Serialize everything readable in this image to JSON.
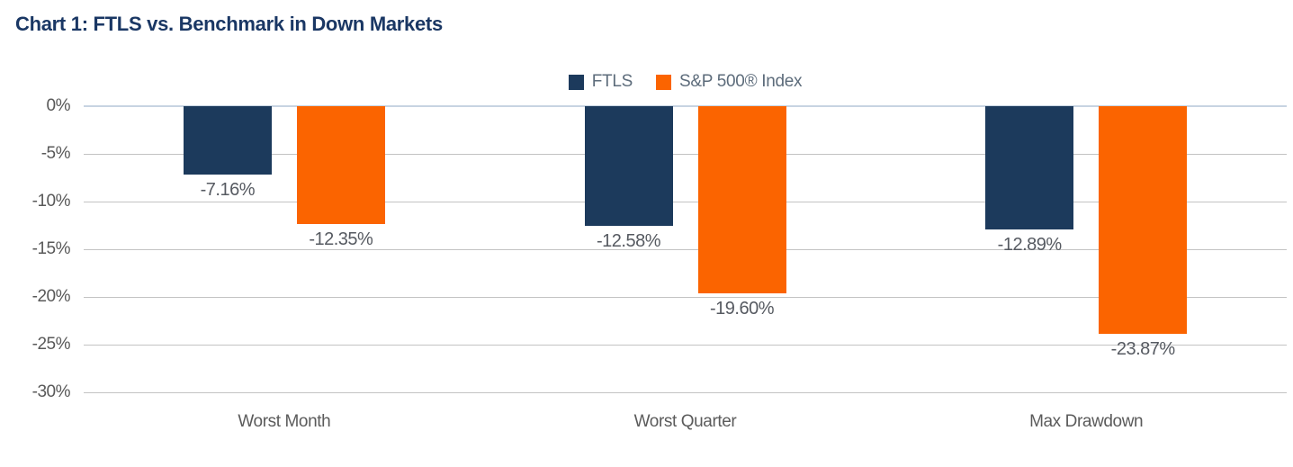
{
  "title": "Chart 1: FTLS vs. Benchmark in Down Markets",
  "colors": {
    "title_navy": "#1A3764",
    "ftls_navy": "#1C3A5C",
    "sp500_orange": "#FB6400",
    "gridline_gray": "#C3C3C3",
    "zero_line_blue": "#C7D4E2",
    "label_gray": "#595959",
    "legend_text": "#5D6C7B"
  },
  "chart_data": {
    "type": "bar",
    "title": "Chart 1: FTLS vs. Benchmark in Down Markets",
    "categories": [
      "Worst Month",
      "Worst Quarter",
      "Max Drawdown"
    ],
    "series": [
      {
        "name": "FTLS",
        "color": "#1C3A5C",
        "values": [
          -7.16,
          -12.58,
          -12.89
        ],
        "labels": [
          "-7.16%",
          "-12.58%",
          "-12.89%"
        ]
      },
      {
        "name": "S&P 500® Index",
        "color": "#FB6400",
        "values": [
          -12.35,
          -19.6,
          -23.87
        ],
        "labels": [
          "-12.35%",
          "-19.60%",
          "-23.87%"
        ]
      }
    ],
    "xlabel": "",
    "ylabel": "",
    "ylim": [
      -30,
      0
    ],
    "yticks": [
      0,
      -5,
      -10,
      -15,
      -20,
      -25,
      -30
    ],
    "ytick_labels": [
      "0%",
      "-5%",
      "-10%",
      "-15%",
      "-20%",
      "-25%",
      "-30%"
    ],
    "grid": true,
    "legend_position": "top-center"
  }
}
